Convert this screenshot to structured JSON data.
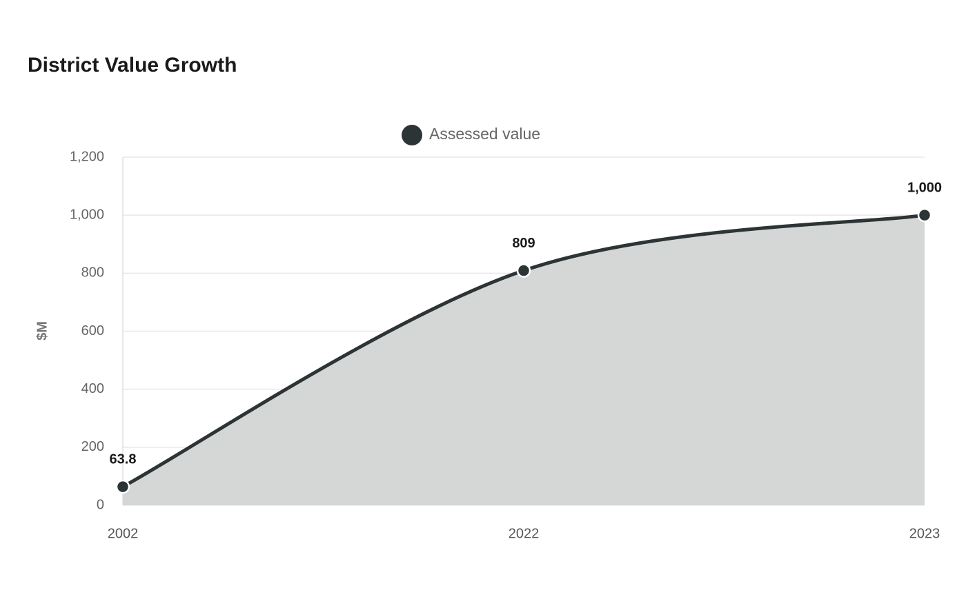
{
  "chart_data": {
    "type": "area",
    "title": "District Value Growth",
    "ylabel": "$M",
    "categories": [
      "2002",
      "2022",
      "2023"
    ],
    "series": [
      {
        "name": "Assessed value",
        "color": "#2d3436",
        "fill": "#d5d7d6",
        "values": [
          63.8,
          809,
          1000
        ],
        "value_labels": [
          "63.8",
          "809",
          "1,000"
        ]
      }
    ],
    "ylim": [
      0,
      1200
    ],
    "yticks": [
      0,
      200,
      400,
      600,
      800,
      {
        "value": 1000,
        "label": "1,000"
      },
      {
        "value": 1200,
        "label": "1,200"
      }
    ],
    "grid": true,
    "legend": "top"
  }
}
